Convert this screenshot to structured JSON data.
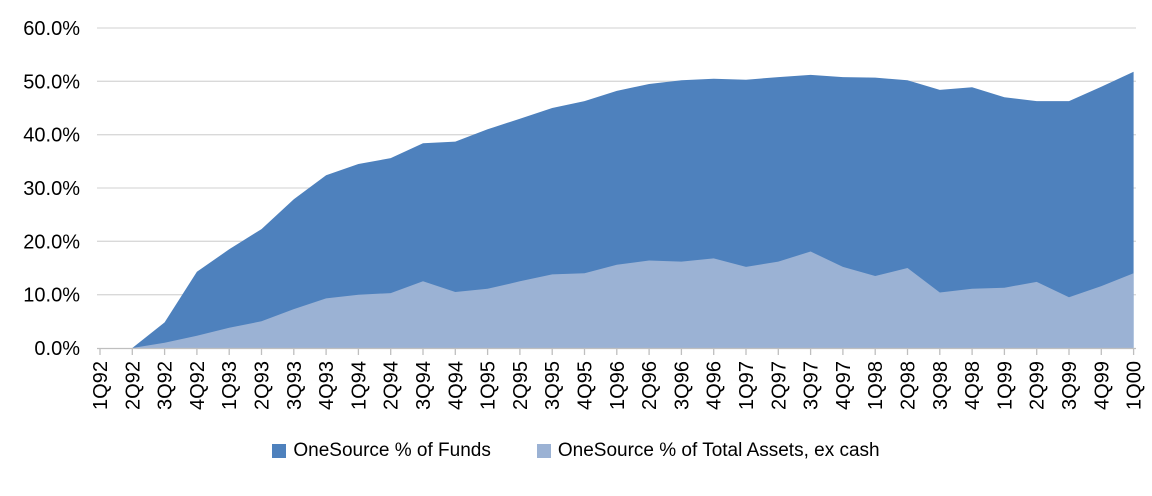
{
  "chart_data": {
    "type": "area",
    "stacked": false,
    "title": "",
    "xlabel": "",
    "ylabel": "",
    "categories": [
      "1Q92",
      "2Q92",
      "3Q92",
      "4Q92",
      "1Q93",
      "2Q93",
      "3Q93",
      "4Q93",
      "1Q94",
      "2Q94",
      "3Q94",
      "4Q94",
      "1Q95",
      "2Q95",
      "3Q95",
      "4Q95",
      "1Q96",
      "2Q96",
      "3Q96",
      "4Q96",
      "1Q97",
      "2Q97",
      "3Q97",
      "4Q97",
      "1Q98",
      "2Q98",
      "3Q98",
      "4Q98",
      "1Q99",
      "2Q99",
      "3Q99",
      "4Q99",
      "1Q00"
    ],
    "series": [
      {
        "name": "OneSource % of Funds",
        "color": "#4E81BD",
        "values": [
          0,
          0,
          4.8,
          14.3,
          18.5,
          22.3,
          27.9,
          32.4,
          34.5,
          35.6,
          38.4,
          38.7,
          41.0,
          43.0,
          45.0,
          46.3,
          48.2,
          49.5,
          50.2,
          50.5,
          50.3,
          50.8,
          51.2,
          50.8,
          50.7,
          50.2,
          48.4,
          48.9,
          47.0,
          46.3,
          46.3,
          49.0,
          51.8
        ]
      },
      {
        "name": "OneSource % of Total Assets, ex cash",
        "color": "#9BB2D4",
        "values": [
          0,
          0,
          1.0,
          2.3,
          3.8,
          5.0,
          7.3,
          9.3,
          10.0,
          10.3,
          12.5,
          10.5,
          11.1,
          12.5,
          13.8,
          14.0,
          15.6,
          16.4,
          16.2,
          16.8,
          15.2,
          16.2,
          18.1,
          15.2,
          13.5,
          15.0,
          10.4,
          11.1,
          11.3,
          12.4,
          9.5,
          11.6,
          14.0
        ]
      }
    ],
    "ylim": [
      0,
      60
    ],
    "ytick_labels": [
      "0.0%",
      "10.0%",
      "20.0%",
      "30.0%",
      "40.0%",
      "50.0%",
      "60.0%"
    ],
    "grid": "horizontal",
    "legend_position": "bottom"
  },
  "style": {
    "gridline_color": "#D9D9D9",
    "axis_color": "#BFBFBF",
    "text_color": "#000000",
    "background": "#FFFFFF"
  }
}
